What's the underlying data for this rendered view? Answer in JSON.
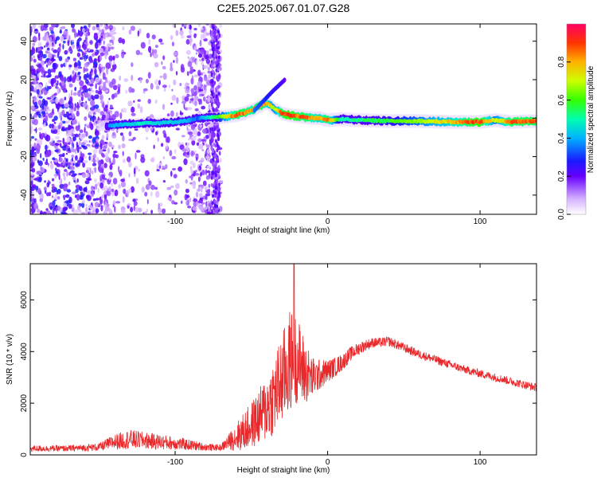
{
  "title": "C2E5.2025.067.01.07.G28",
  "chart_data": [
    {
      "type": "heatmap",
      "xlabel": "Height of straight line (km)",
      "ylabel": "Frequency (Hz)",
      "xlim": [
        -195,
        137
      ],
      "ylim": [
        -50,
        49
      ],
      "xticks": [
        -100,
        0,
        100
      ],
      "yticks": [
        -40,
        -20,
        0,
        20,
        40
      ],
      "colorbar": {
        "label": "Normalized spectral amplitude",
        "range": [
          0,
          1
        ],
        "ticks": [
          0.0,
          0.2,
          0.4,
          0.6,
          0.8
        ]
      },
      "ridge": {
        "x": [
          -143,
          -130,
          -120,
          -110,
          -100,
          -90,
          -85,
          -72,
          -65,
          -60,
          -55,
          -50,
          -45,
          -40,
          -35,
          -30,
          -25,
          -20,
          -15,
          -10,
          -5,
          0,
          10,
          20,
          40,
          60,
          80,
          100,
          110,
          120,
          137
        ],
        "freq": [
          -4,
          -3,
          -2.5,
          -2.5,
          -2,
          -1,
          0,
          0.5,
          1,
          1.5,
          2.5,
          4,
          6,
          8,
          5,
          2.5,
          1.5,
          1,
          0.5,
          0,
          0,
          -1,
          -0.5,
          -1,
          -1.5,
          -1.5,
          -2,
          -2,
          -1,
          -2,
          -1.5
        ],
        "amplitude": [
          0.4,
          0.45,
          0.5,
          0.45,
          0.45,
          0.4,
          0.35,
          0.6,
          0.8,
          0.9,
          0.9,
          0.85,
          0.9,
          0.85,
          0.7,
          0.9,
          0.95,
          0.9,
          0.9,
          0.85,
          0.8,
          0.9,
          0.5,
          0.55,
          0.6,
          0.7,
          0.8,
          0.95,
          0.7,
          0.9,
          0.9
        ]
      },
      "branch": {
        "x": [
          -48,
          -42,
          -36,
          -32,
          -28
        ],
        "freq": [
          4,
          9,
          14,
          17,
          20
        ],
        "amplitude": [
          0.35,
          0.3,
          0.25,
          0.25,
          0.2
        ]
      }
    },
    {
      "type": "line",
      "xlabel": "Height of straight line (km)",
      "ylabel": "SNR (10 * v/v)",
      "xlim": [
        -195,
        137
      ],
      "ylim": [
        0,
        7400
      ],
      "xticks": [
        -100,
        0,
        100
      ],
      "yticks": [
        0,
        2000,
        4000,
        6000
      ],
      "series": [
        {
          "color": "#e8282a",
          "x": [
            -195,
            -170,
            -150,
            -140,
            -130,
            -120,
            -110,
            -100,
            -90,
            -80,
            -70,
            -65,
            -60,
            -55,
            -50,
            -45,
            -40,
            -35,
            -30,
            -27,
            -25,
            -22,
            -20,
            -17,
            -15,
            -10,
            -5,
            0,
            5,
            10,
            15,
            20,
            25,
            30,
            35,
            40,
            50,
            60,
            70,
            80,
            90,
            100,
            110,
            120,
            130,
            137
          ],
          "mean": [
            250,
            250,
            300,
            500,
            600,
            560,
            500,
            450,
            380,
            300,
            280,
            500,
            700,
            900,
            1150,
            1450,
            1800,
            2300,
            2900,
            3300,
            3600,
            3800,
            3700,
            3400,
            3200,
            3000,
            3100,
            3250,
            3400,
            3600,
            3900,
            4100,
            4250,
            4350,
            4350,
            4400,
            4150,
            3900,
            3700,
            3500,
            3300,
            3150,
            3000,
            2850,
            2700,
            2600
          ],
          "noise": [
            120,
            120,
            150,
            300,
            380,
            330,
            300,
            260,
            210,
            140,
            120,
            300,
            550,
            750,
            900,
            1100,
            1300,
            1550,
            1800,
            1950,
            2000,
            1900,
            1700,
            1500,
            1300,
            800,
            600,
            450,
            380,
            330,
            280,
            250,
            220,
            200,
            190,
            190,
            180,
            170,
            170,
            160,
            160,
            160,
            160,
            160,
            160,
            160
          ],
          "peak": {
            "x": -22,
            "y": 7400
          }
        }
      ]
    }
  ]
}
